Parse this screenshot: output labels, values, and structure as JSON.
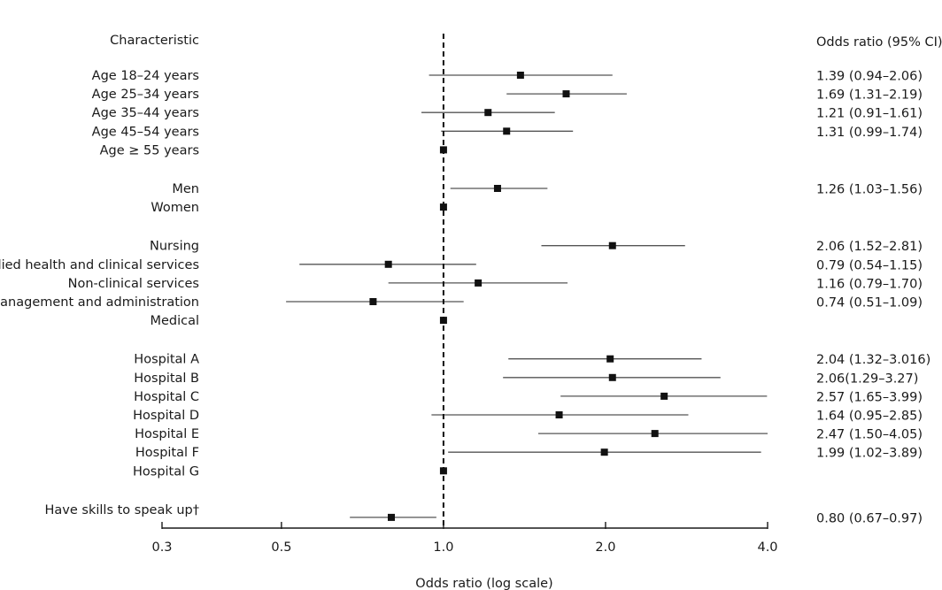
{
  "chart_data": {
    "type": "forest",
    "xscale": "log",
    "xlim": [
      0.3,
      4.0
    ],
    "xticks": [
      {
        "value": 0.3,
        "label": "0.3"
      },
      {
        "value": 0.5,
        "label": "0.5"
      },
      {
        "value": 1.0,
        "label": "1.0"
      },
      {
        "value": 2.0,
        "label": "2.0"
      },
      {
        "value": 4.0,
        "label": "4.0"
      }
    ],
    "xlabel": "Odds ratio (log scale)",
    "left_header": "Characteristic",
    "right_header": "Odds ratio (95% CI)",
    "reference_line": 1.0,
    "rows": [
      {
        "label": "Age 18–24 years",
        "or": 1.39,
        "lo": 0.94,
        "hi": 2.06,
        "text": "1.39 (0.94–2.06)",
        "group": 0
      },
      {
        "label": "Age 25–34 years",
        "or": 1.69,
        "lo": 1.31,
        "hi": 2.19,
        "text": "1.69 (1.31–2.19)",
        "group": 0
      },
      {
        "label": "Age 35–44 years",
        "or": 1.21,
        "lo": 0.91,
        "hi": 1.61,
        "text": "1.21 (0.91–1.61)",
        "group": 0
      },
      {
        "label": "Age 45–54 years",
        "or": 1.31,
        "lo": 0.99,
        "hi": 1.74,
        "text": "1.31 (0.99–1.74)",
        "group": 0
      },
      {
        "label": "Age ≥ 55 years",
        "or": 1.0,
        "lo": null,
        "hi": null,
        "text": "",
        "group": 0
      },
      {
        "label": "Men",
        "or": 1.26,
        "lo": 1.03,
        "hi": 1.56,
        "text": "1.26 (1.03–1.56)",
        "group": 1
      },
      {
        "label": "Women",
        "or": 1.0,
        "lo": null,
        "hi": null,
        "text": "",
        "group": 1
      },
      {
        "label": "Nursing",
        "or": 2.06,
        "lo": 1.52,
        "hi": 2.81,
        "text": "2.06 (1.52–2.81)",
        "group": 2
      },
      {
        "label": "Allied health and clinical services",
        "or": 0.79,
        "lo": 0.54,
        "hi": 1.15,
        "text": "0.79 (0.54–1.15)",
        "group": 2
      },
      {
        "label": "Non-clinical services",
        "or": 1.16,
        "lo": 0.79,
        "hi": 1.7,
        "text": "1.16 (0.79–1.70)",
        "group": 2
      },
      {
        "label": "Management and administration",
        "or": 0.74,
        "lo": 0.51,
        "hi": 1.09,
        "text": "0.74 (0.51–1.09)",
        "group": 2
      },
      {
        "label": "Medical",
        "or": 1.0,
        "lo": null,
        "hi": null,
        "text": "",
        "group": 2
      },
      {
        "label": "Hospital A",
        "or": 2.04,
        "lo": 1.32,
        "hi": 3.016,
        "text": "2.04 (1.32–3.016)",
        "group": 3
      },
      {
        "label": "Hospital B",
        "or": 2.06,
        "lo": 1.29,
        "hi": 3.27,
        "text": "2.06(1.29–3.27)",
        "group": 3
      },
      {
        "label": "Hospital C",
        "or": 2.57,
        "lo": 1.65,
        "hi": 3.99,
        "text": "2.57 (1.65–3.99)",
        "group": 3
      },
      {
        "label": "Hospital D",
        "or": 1.64,
        "lo": 0.95,
        "hi": 2.85,
        "text": "1.64 (0.95–2.85)",
        "group": 3
      },
      {
        "label": "Hospital E",
        "or": 2.47,
        "lo": 1.5,
        "hi": 4.05,
        "text": "2.47 (1.50–4.05)",
        "group": 3
      },
      {
        "label": "Hospital F",
        "or": 1.99,
        "lo": 1.02,
        "hi": 3.89,
        "text": "1.99 (1.02–3.89)",
        "group": 3
      },
      {
        "label": "Hospital G",
        "or": 1.0,
        "lo": null,
        "hi": null,
        "text": "",
        "group": 3
      },
      {
        "label": "Have skills to speak up†",
        "or": 0.8,
        "lo": 0.67,
        "hi": 0.97,
        "text": "0.80 (0.67–0.97)",
        "group": 4
      }
    ]
  },
  "colors": {
    "ink": "#1a1a1a",
    "ci_line": "#555555",
    "marker": "#111111",
    "background": "#ffffff"
  }
}
